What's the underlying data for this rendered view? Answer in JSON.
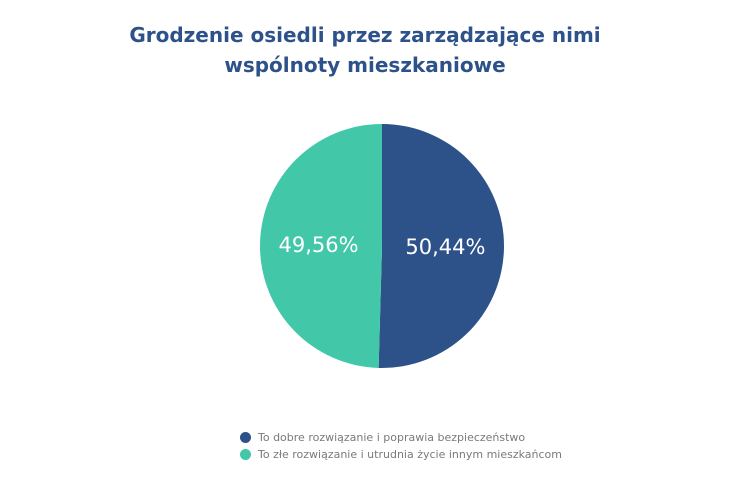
{
  "chart_data": {
    "type": "pie",
    "title_lines": [
      "Grodzenie osiedli przez zarządzające nimi",
      "wspólnoty mieszkaniowe"
    ],
    "slices": [
      {
        "label": "To dobre rozwiązanie i poprawia bezpieczeństwo",
        "value": 50.44,
        "display": "50,44%",
        "color": "#2d5189"
      },
      {
        "label": "To złe rozwiązanie i utrudnia życie innym mieszkańcom",
        "value": 49.56,
        "display": "49,56%",
        "color": "#42c8a8"
      }
    ],
    "legend_position": "bottom",
    "start_angle_deg": 0,
    "direction": "clockwise"
  }
}
